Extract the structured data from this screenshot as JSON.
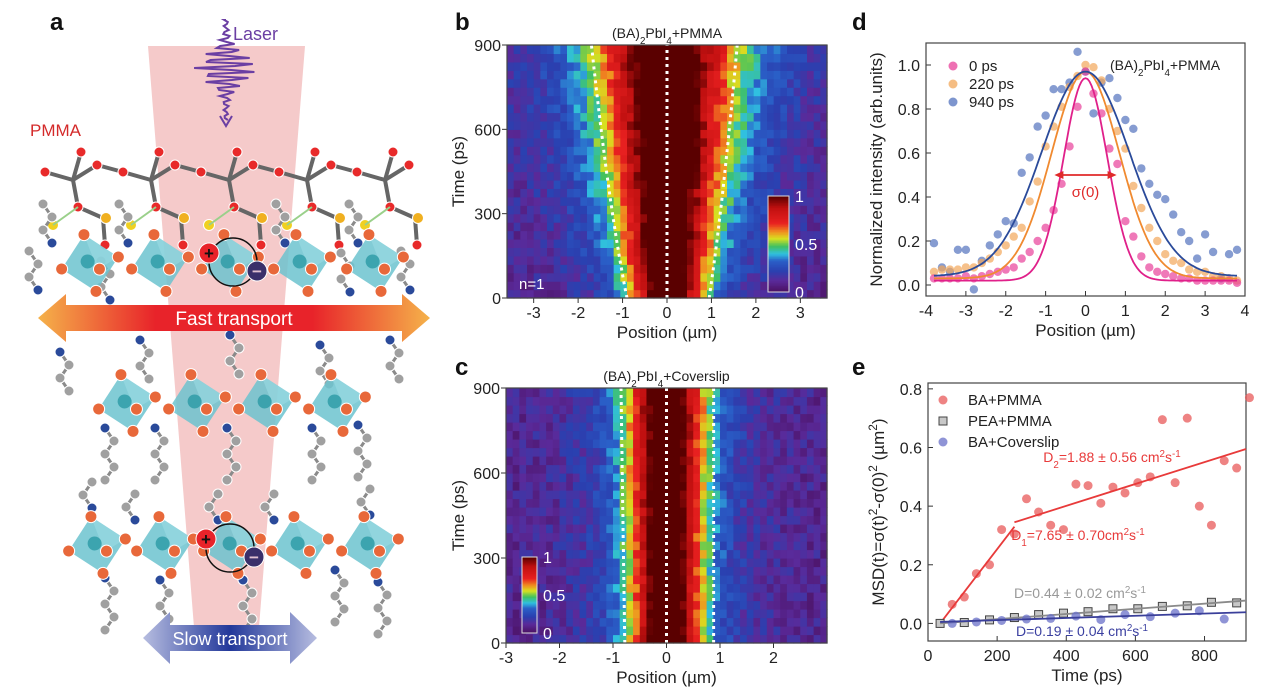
{
  "panel_labels": {
    "a": "a",
    "b": "b",
    "c": "c",
    "d": "d",
    "e": "e"
  },
  "panel_a": {
    "laser_label": "Laser",
    "pmma_label": "PMMA",
    "fast_label": "Fast transport",
    "slow_label": "Slow transport",
    "hole_symbol": "+",
    "electron_symbol": "−",
    "colors": {
      "laser": "#6b3fa3",
      "pmma": "#d42a2a",
      "octahedra": "#6cc3cf",
      "halide": "#e8683a",
      "fast_arrow": "#e8232a",
      "slow_arrow": "#2a3f9a"
    }
  },
  "chart_data": [
    {
      "id": "b",
      "type": "heatmap",
      "title": "(BA)_{2}PbI_{4}+PMMA",
      "annotation": "n=1",
      "xlabel": "Position (µm)",
      "ylabel": "Time (ps)",
      "xlim": [
        -3.6,
        3.6
      ],
      "ylim": [
        0,
        900
      ],
      "xticks": [
        -3,
        -2,
        -1,
        0,
        1,
        2,
        3
      ],
      "yticks": [
        0,
        300,
        600,
        900
      ],
      "colorbar": {
        "range": [
          0,
          1
        ],
        "ticks": [
          "0",
          "0.5",
          "1"
        ],
        "position": "bottom-right"
      },
      "profile_sigma_um": {
        "t0": 0.55,
        "t900": 1.1
      },
      "guides": [
        {
          "x_at_0": -0.9,
          "x_at_900": -1.7
        },
        {
          "x_at_0": 0,
          "x_at_900": 0
        },
        {
          "x_at_0": 0.95,
          "x_at_900": 1.58
        }
      ]
    },
    {
      "id": "c",
      "type": "heatmap",
      "title": "(BA)_{2}PbI_{4}+Coverslip",
      "xlabel": "Position (µm)",
      "ylabel": "Time (ps)",
      "xlim": [
        -3,
        3
      ],
      "ylim": [
        0,
        900
      ],
      "xticks": [
        -3,
        -2,
        -1,
        0,
        1,
        2
      ],
      "yticks": [
        0,
        300,
        600,
        900
      ],
      "colorbar": {
        "range": [
          0,
          1
        ],
        "ticks": [
          "0",
          "0.5",
          "1"
        ],
        "position": "bottom-left"
      },
      "profile_sigma_um": {
        "t0": 0.45,
        "t900": 0.5
      },
      "guides": [
        {
          "x_at_0": -0.78,
          "x_at_900": -0.85
        },
        {
          "x_at_0": 0,
          "x_at_900": 0
        },
        {
          "x_at_0": 0.88,
          "x_at_900": 0.88
        }
      ]
    },
    {
      "id": "d",
      "type": "scatter",
      "xlabel": "Position (µm)",
      "ylabel": "Normalized intensity (arb.units)",
      "xlim": [
        -4,
        4
      ],
      "ylim": [
        -0.05,
        1.1
      ],
      "xticks": [
        -4,
        -3,
        -2,
        -1,
        0,
        1,
        2,
        3,
        4
      ],
      "yticks": [
        "0.0",
        "0.2",
        "0.4",
        "0.6",
        "0.8",
        "1.0"
      ],
      "annotation": "(BA)_{2}PbI_{4}+PMMA",
      "sigma_label": "σ(0)",
      "sigma_arrow_x": [
        -0.78,
        0.78
      ],
      "sigma_arrow_y": 0.5,
      "legend_position": "top-left",
      "x": [
        -3.8,
        -3.6,
        -3.4,
        -3.2,
        -3.0,
        -2.8,
        -2.6,
        -2.4,
        -2.2,
        -2.0,
        -1.8,
        -1.6,
        -1.4,
        -1.2,
        -1.0,
        -0.8,
        -0.6,
        -0.4,
        -0.2,
        0,
        0.2,
        0.4,
        0.6,
        0.8,
        1.0,
        1.2,
        1.4,
        1.6,
        1.8,
        2.0,
        2.2,
        2.4,
        2.6,
        2.8,
        3.0,
        3.2,
        3.4,
        3.6,
        3.8
      ],
      "series": [
        {
          "name": "0 ps",
          "color": "#e8409a",
          "fit_color": "#e0208a",
          "fit": {
            "amplitude": 0.92,
            "center": 0,
            "sigma": 0.55,
            "offset": 0.02
          },
          "values": [
            0.03,
            0.03,
            0.03,
            0.03,
            0.04,
            0.03,
            0.04,
            0.05,
            0.06,
            0.07,
            0.08,
            0.12,
            0.15,
            0.2,
            0.26,
            0.34,
            0.46,
            0.63,
            0.81,
            0.97,
            0.87,
            0.78,
            0.62,
            0.55,
            0.29,
            0.22,
            0.13,
            0.08,
            0.06,
            0.05,
            0.04,
            0.03,
            0.03,
            0.02,
            0.02,
            0.02,
            0.02,
            0.02,
            0.01
          ]
        },
        {
          "name": "220 ps",
          "color": "#f2a75a",
          "fit_color": "#f08a30",
          "fit": {
            "amplitude": 0.94,
            "center": 0,
            "sigma": 0.85,
            "offset": 0.03
          },
          "values": [
            0.06,
            0.07,
            0.07,
            0.07,
            0.08,
            0.08,
            0.1,
            0.12,
            0.15,
            0.18,
            0.22,
            0.26,
            0.38,
            0.47,
            0.63,
            0.72,
            0.81,
            0.9,
            0.95,
            1.0,
            0.99,
            0.93,
            0.8,
            0.7,
            0.62,
            0.45,
            0.35,
            0.26,
            0.2,
            0.14,
            0.11,
            0.1,
            0.07,
            0.06,
            0.06,
            0.04,
            0.04,
            0.03,
            0.02
          ]
        },
        {
          "name": "940 ps",
          "color": "#5272bd",
          "fit_color": "#2a4a9a",
          "fit": {
            "amplitude": 0.93,
            "center": 0,
            "sigma": 1.1,
            "offset": 0.04
          },
          "values": [
            0.19,
            0.08,
            0.06,
            0.16,
            0.16,
            -0.02,
            0.11,
            0.18,
            0.23,
            0.29,
            0.28,
            0.51,
            0.58,
            0.72,
            0.77,
            0.89,
            0.89,
            0.92,
            1.06,
            0.97,
            0.78,
            0.92,
            0.94,
            0.85,
            0.75,
            0.71,
            0.53,
            0.46,
            0.41,
            0.39,
            0.32,
            0.24,
            0.2,
            0.12,
            0.23,
            0.15,
            0.03,
            0.14,
            0.16
          ]
        }
      ]
    },
    {
      "id": "e",
      "type": "scatter",
      "xlabel": "Time (ps)",
      "ylabel": "MSD(t)=σ(t)^{2}-σ(0)^{2} (µm^{2})",
      "xlim": [
        0,
        920
      ],
      "ylim": [
        -0.06,
        0.82
      ],
      "xticks": [
        0,
        200,
        400,
        600,
        800
      ],
      "yticks": [
        "0.0",
        "0.2",
        "0.4",
        "0.6",
        "0.8"
      ],
      "legend_position": "top-left",
      "series": [
        {
          "name": "BA+PMMA",
          "marker": "circle",
          "color": "#e85a5a",
          "x": [
            35,
            70,
            105,
            140,
            178,
            213,
            250,
            285,
            320,
            355,
            392,
            428,
            463,
            500,
            535,
            570,
            607,
            643,
            678,
            715,
            750,
            785,
            820,
            857,
            893,
            930
          ],
          "y": [
            0,
            0.065,
            0.09,
            0.17,
            0.2,
            0.32,
            0.305,
            0.425,
            0.38,
            0.335,
            0.32,
            0.475,
            0.47,
            0.41,
            0.465,
            0.445,
            0.48,
            0.5,
            0.695,
            0.48,
            0.7,
            0.4,
            0.335,
            0.555,
            0.53,
            0.77
          ],
          "fits": [
            {
              "x": [
                35,
                250
              ],
              "y": [
                0,
                0.33
              ],
              "label": "D_{1}=7.65 ± 0.70cm^{2}s^{-1}"
            },
            {
              "x": [
                250,
                920
              ],
              "y": [
                0.345,
                0.595
              ],
              "label": "D_{2}=1.88 ± 0.56 cm^{2}s^{-1}"
            }
          ]
        },
        {
          "name": "PEA+PMMA",
          "marker": "square",
          "color": "#7a7a7a",
          "x": [
            35,
            105,
            178,
            250,
            320,
            392,
            463,
            535,
            607,
            678,
            750,
            820,
            893
          ],
          "y": [
            0,
            0.003,
            0.012,
            0.02,
            0.03,
            0.035,
            0.04,
            0.05,
            0.05,
            0.058,
            0.06,
            0.072,
            0.07
          ],
          "fits": [
            {
              "x": [
                35,
                920
              ],
              "y": [
                0,
                0.078
              ],
              "label": "D=0.44 ± 0.02 cm^{2}s^{-1}"
            }
          ]
        },
        {
          "name": "BA+Coverslip",
          "marker": "circle",
          "color": "#6a70c8",
          "x": [
            70,
            140,
            213,
            285,
            355,
            428,
            500,
            570,
            643,
            715,
            785,
            857
          ],
          "y": [
            0,
            0.005,
            0.01,
            0.015,
            0.017,
            0.025,
            0.013,
            0.03,
            0.023,
            0.035,
            0.043,
            0.015
          ],
          "fits": [
            {
              "x": [
                35,
                920
              ],
              "y": [
                0.005,
                0.038
              ],
              "label": "D=0.19 ± 0.04 cm^{2}s^{-1}"
            }
          ]
        }
      ]
    }
  ]
}
